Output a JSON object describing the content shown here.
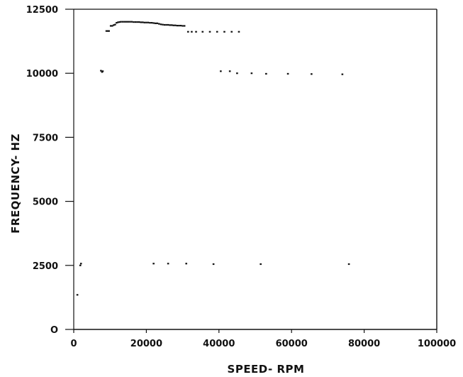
{
  "chart_data": {
    "type": "scatter",
    "xlabel": "SPEED- RPM",
    "ylabel": "FREQUENCY- HZ",
    "xlim": [
      0,
      100000
    ],
    "ylim": [
      0,
      12500
    ],
    "x_ticks": [
      0,
      20000,
      40000,
      60000,
      80000,
      100000
    ],
    "x_tick_labels": [
      "0",
      "20000",
      "40000",
      "60000",
      "80000",
      "100000"
    ],
    "y_ticks": [
      0,
      2500,
      5000,
      7500,
      10000,
      12500
    ],
    "y_tick_labels": [
      "O",
      "2500",
      "5000",
      "7500",
      "10000",
      "12500"
    ],
    "grid": false,
    "series": [
      {
        "x": [
          1000,
          1800,
          2000,
          7500,
          7800,
          8000,
          22000,
          26000,
          31000,
          38500,
          51500,
          75800,
          40500,
          43000,
          45000,
          49000,
          53000,
          59000,
          65500,
          74000,
          9000,
          9400,
          9700,
          10200,
          10600,
          11000,
          11400,
          31500,
          32500,
          33700,
          35500,
          37500,
          39500,
          41500,
          43500,
          45500,
          11800,
          12200,
          12600,
          13000,
          13500,
          14000,
          14500,
          15000,
          15500,
          16000,
          16500,
          17000,
          17500,
          18000,
          18500,
          19000,
          19500,
          20000,
          20500,
          21000,
          21500,
          22000,
          22500,
          23000,
          23500,
          24000,
          24500,
          25000,
          25500,
          26000,
          26500,
          27000,
          27500,
          28000,
          28500,
          29000,
          29500,
          30000,
          30500
        ],
        "y": [
          1350,
          2500,
          2570,
          10100,
          10050,
          10080,
          2570,
          2570,
          2570,
          2550,
          2550,
          2550,
          10080,
          10080,
          10000,
          10000,
          9980,
          9980,
          9970,
          9960,
          11650,
          11650,
          11650,
          11850,
          11850,
          11880,
          11900,
          11620,
          11620,
          11620,
          11620,
          11620,
          11620,
          11620,
          11620,
          11620,
          11970,
          11990,
          12000,
          12010,
          12010,
          12010,
          12010,
          12010,
          12010,
          12010,
          12000,
          12000,
          12000,
          12000,
          11990,
          11990,
          11980,
          11980,
          11980,
          11970,
          11970,
          11960,
          11950,
          11950,
          11930,
          11910,
          11900,
          11890,
          11890,
          11890,
          11880,
          11880,
          11870,
          11870,
          11860,
          11860,
          11860,
          11850,
          11850
        ]
      }
    ]
  }
}
